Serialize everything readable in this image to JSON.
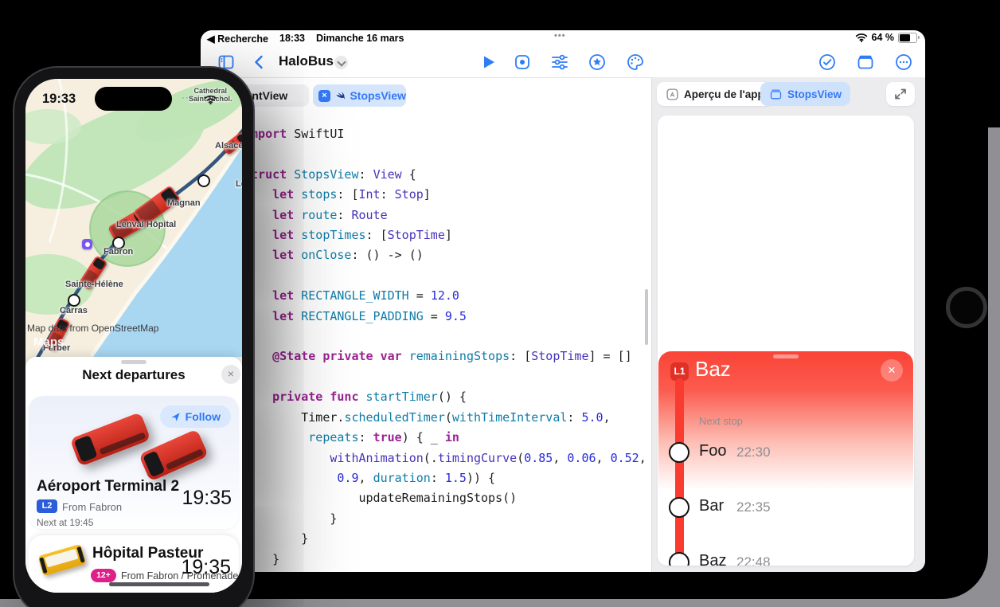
{
  "icons": {
    "close": "×",
    "star": "★",
    "multitask": "•••",
    "cell_dots": "····"
  },
  "ipad": {
    "status": {
      "back": "◀ Recherche",
      "time": "18:33",
      "date": "Dimanche 16 mars",
      "battery": "64 %"
    },
    "toolbar": {
      "title": "HaloBus"
    },
    "editor": {
      "tabs": {
        "content": "ContentView",
        "stops": "StopsView"
      },
      "code_lines": [
        [
          [
            "import",
            "k"
          ],
          [
            " SwiftUI",
            "p"
          ]
        ],
        [],
        [
          [
            "struct",
            "k"
          ],
          [
            " ",
            "p"
          ],
          [
            "StopsView",
            "d"
          ],
          [
            ": ",
            "p"
          ],
          [
            "View",
            "t"
          ],
          [
            " {",
            "p"
          ]
        ],
        [
          [
            "    ",
            "p"
          ],
          [
            "let",
            "k"
          ],
          [
            " ",
            "p"
          ],
          [
            "stops",
            "d"
          ],
          [
            ": [",
            "p"
          ],
          [
            "Int",
            "t"
          ],
          [
            ": ",
            "p"
          ],
          [
            "Stop",
            "t"
          ],
          [
            "]",
            "p"
          ]
        ],
        [
          [
            "    ",
            "p"
          ],
          [
            "let",
            "k"
          ],
          [
            " ",
            "p"
          ],
          [
            "route",
            "d"
          ],
          [
            ": ",
            "p"
          ],
          [
            "Route",
            "t"
          ]
        ],
        [
          [
            "    ",
            "p"
          ],
          [
            "let",
            "k"
          ],
          [
            " ",
            "p"
          ],
          [
            "stopTimes",
            "d"
          ],
          [
            ": [",
            "p"
          ],
          [
            "StopTime",
            "t"
          ],
          [
            "]",
            "p"
          ]
        ],
        [
          [
            "    ",
            "p"
          ],
          [
            "let",
            "k"
          ],
          [
            " ",
            "p"
          ],
          [
            "onClose",
            "d"
          ],
          [
            ": () -> ()",
            "p"
          ]
        ],
        [],
        [
          [
            "    ",
            "p"
          ],
          [
            "let",
            "k"
          ],
          [
            " ",
            "p"
          ],
          [
            "RECTANGLE_WIDTH",
            "d"
          ],
          [
            " = ",
            "p"
          ],
          [
            "12.0",
            "n"
          ]
        ],
        [
          [
            "    ",
            "p"
          ],
          [
            "let",
            "k"
          ],
          [
            " ",
            "p"
          ],
          [
            "RECTANGLE_PADDING",
            "d"
          ],
          [
            " = ",
            "p"
          ],
          [
            "9.5",
            "n"
          ]
        ],
        [],
        [
          [
            "    ",
            "p"
          ],
          [
            "@State",
            "k"
          ],
          [
            " ",
            "p"
          ],
          [
            "private",
            "k"
          ],
          [
            " ",
            "p"
          ],
          [
            "var",
            "k"
          ],
          [
            " ",
            "p"
          ],
          [
            "remainingStops",
            "d"
          ],
          [
            ": [",
            "p"
          ],
          [
            "StopTime",
            "t"
          ],
          [
            "] = []",
            "p"
          ]
        ],
        [],
        [
          [
            "    ",
            "p"
          ],
          [
            "private",
            "k"
          ],
          [
            " ",
            "p"
          ],
          [
            "func",
            "k"
          ],
          [
            " ",
            "p"
          ],
          [
            "startTimer",
            "d"
          ],
          [
            "() {",
            "p"
          ]
        ],
        [
          [
            "        Timer.",
            "p"
          ],
          [
            "scheduledTimer",
            "d"
          ],
          [
            "(",
            "p"
          ],
          [
            "withTimeInterval",
            "d"
          ],
          [
            ": ",
            "p"
          ],
          [
            "5.0",
            "n"
          ],
          [
            ",",
            "p"
          ]
        ],
        [
          [
            "         ",
            "p"
          ],
          [
            "repeats",
            "d"
          ],
          [
            ": ",
            "p"
          ],
          [
            "true",
            "k"
          ],
          [
            ") { _ ",
            "p"
          ],
          [
            "in",
            "k"
          ]
        ],
        [
          [
            "            ",
            "p"
          ],
          [
            "withAnimation",
            "t"
          ],
          [
            "(.",
            "p"
          ],
          [
            "timingCurve",
            "t"
          ],
          [
            "(",
            "p"
          ],
          [
            "0.85",
            "n"
          ],
          [
            ", ",
            "p"
          ],
          [
            "0.06",
            "n"
          ],
          [
            ", ",
            "p"
          ],
          [
            "0.52",
            "n"
          ],
          [
            ",",
            "p"
          ]
        ],
        [
          [
            "             ",
            "p"
          ],
          [
            "0.9",
            "n"
          ],
          [
            ", ",
            "p"
          ],
          [
            "duration",
            "d"
          ],
          [
            ": ",
            "p"
          ],
          [
            "1.5",
            "n"
          ],
          [
            ")) {",
            "p"
          ]
        ],
        [
          [
            "                updateRemainingStops()",
            "p"
          ]
        ],
        [
          [
            "            }",
            "p"
          ]
        ],
        [
          [
            "        }",
            "p"
          ]
        ],
        [
          [
            "    }",
            "p"
          ]
        ],
        [
          [
            "}",
            "p"
          ]
        ]
      ]
    },
    "preview": {
      "tabs": {
        "app": "Aperçu de l'app",
        "stops": "StopsView"
      },
      "card": {
        "line_badge": "L1",
        "title": "Baz",
        "next_stop_label": "Next stop",
        "stops": [
          {
            "name": "Foo",
            "time": "22:30"
          },
          {
            "name": "Bar",
            "time": "22:35"
          },
          {
            "name": "Baz",
            "time": "22:48"
          }
        ]
      }
    }
  },
  "iphone": {
    "status": {
      "time": "19:33"
    },
    "map": {
      "labels": {
        "cathedral1": "Cathedral",
        "cathedral2": "Saint Nichol.",
        "alsace": "Alsace",
        "le": "Le",
        "magnan": "Magnan",
        "lenval": "Lenval Hôpital",
        "fabron": "Fabron",
        "sainte_helene": "Sainte-Hélène",
        "carras": "Carras",
        "ferber": "Ferber"
      },
      "attribution": "Map data from OpenStreetMap",
      "watermark": "Maps"
    },
    "sheet": {
      "title": "Next departures",
      "departures": [
        {
          "title": "Aéroport Terminal 2",
          "line_badge": "L2",
          "from": "From Fabron",
          "time": "19:35",
          "next": "Next at 19:45",
          "follow_label": "Follow"
        },
        {
          "title": "Hôpital Pasteur",
          "line_badge": "12+",
          "from": "From Fabron / Promenade",
          "time": "19:35"
        }
      ]
    }
  },
  "colors": {
    "accent": "#3478F6",
    "route_red": "#F93B30",
    "map_route": "#33557E",
    "badge_blue": "#2B5CD9",
    "badge_pink": "#E01F8A"
  }
}
